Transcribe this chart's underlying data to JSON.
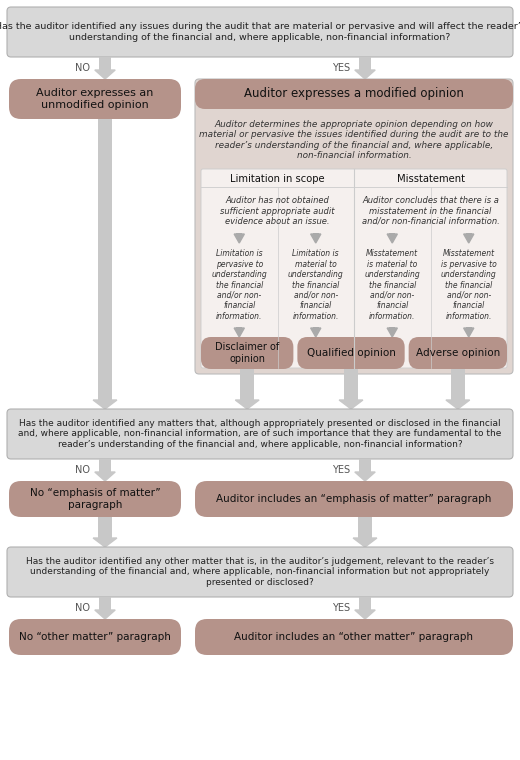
{
  "bg_color": "#ffffff",
  "question_box_color": "#d8d8d8",
  "rounded_box_color": "#b5938a",
  "inner_box_color": "#e0d5d0",
  "inner_box_light": "#ece5e1",
  "inner_box_white": "#f5f0ee",
  "arrow_color": "#c8c8c8",
  "text_dark": "#222222",
  "text_italic": "#333333",
  "q1": "Has the auditor identified any issues during the audit that are material or pervasive and will affect the reader’s\nunderstanding of the financial and, where applicable, non-financial information?",
  "q2": "Has the auditor identified any matters that, although appropriately presented or disclosed in the financial\nand, where applicable, non-financial information, are of such importance that they are fundamental to the\nreader’s understanding of the financial and, where applicable, non-financial information?",
  "q3": "Has the auditor identified any other matter that is, in the auditor’s judgement, relevant to the reader’s\nunderstanding of the financial and, where applicable, non-financial information but not appropriately\npresented or disclosed?",
  "box1_no": "Auditor expresses an\nunmodified opinion",
  "box1_yes": "Auditor expresses a modified opinion",
  "box1_italic": "Auditor determines the appropriate opinion depending on how\nmaterial or pervasive the issues identified during the audit are to the\nreader’s understanding of the financial and, where applicable,\nnon-financial information.",
  "lim_scope_title": "Limitation in scope",
  "lim_scope_desc": "Auditor has not obtained\nsufficient appropriate audit\nevidence about an issue.",
  "lim_pervasive": "Limitation is\npervasive to\nunderstanding\nthe financial\nand/or non-\nfinancial\ninformation.",
  "lim_material": "Limitation is\nmaterial to\nunderstanding\nthe financial\nand/or non-\nfinancial\ninformation.",
  "misstate_title": "Misstatement",
  "misstate_desc": "Auditor concludes that there is a\nmisstatement in the financial\nand/or non-financial information.",
  "misstate_material": "Misstatement\nis material to\nunderstanding\nthe financial\nand/or non-\nfinancial\ninformation.",
  "misstate_pervasive": "Misstatement\nis pervasive to\nunderstanding\nthe financial\nand/or non-\nfinancial\ninformation.",
  "disclaimer": "Disclaimer of\nopinion",
  "qualified": "Qualified opinion",
  "adverse": "Adverse opinion",
  "no_emphasis": "No “emphasis of matter”\nparagraph",
  "yes_emphasis": "Auditor includes an “emphasis of matter” paragraph",
  "no_other": "No “other matter” paragraph",
  "yes_other": "Auditor includes an “other matter” paragraph"
}
